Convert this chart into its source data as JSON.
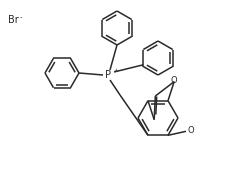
{
  "bg_color": "#ffffff",
  "line_color": "#2a2a2a",
  "text_color": "#2a2a2a",
  "line_width": 1.1,
  "font_size": 7.0,
  "figsize": [
    2.35,
    1.75
  ],
  "dpi": 100,
  "br_text": "Br",
  "br_sup": "-",
  "p_text": "P",
  "p_sup": "+",
  "o_text": "O",
  "ome_text": "O"
}
